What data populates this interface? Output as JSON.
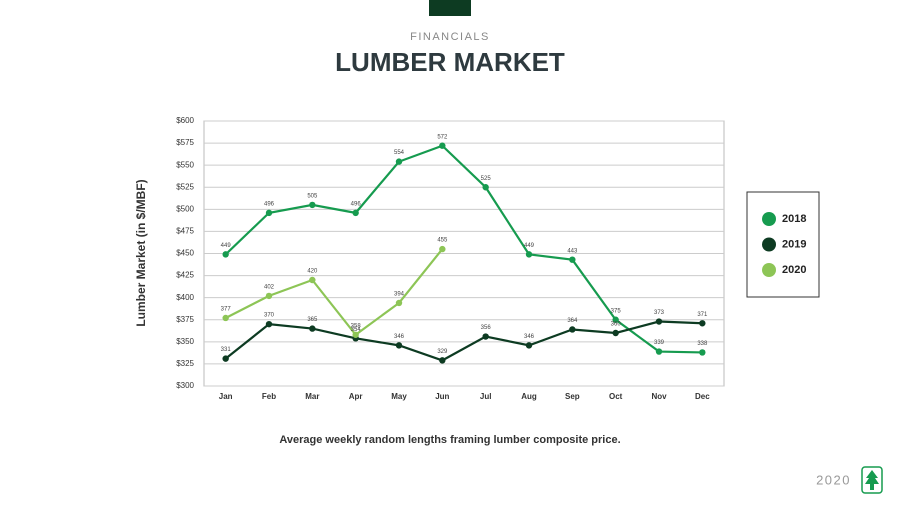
{
  "header": {
    "section": "FINANCIALS",
    "title": "LUMBER MARKET"
  },
  "chart_data": {
    "type": "line",
    "ylabel": "Lumber Market  (in $/MBF)",
    "caption": "Average weekly random lengths framing lumber composite price.",
    "categories": [
      "Jan",
      "Feb",
      "Mar",
      "Apr",
      "May",
      "Jun",
      "Jul",
      "Aug",
      "Sep",
      "Oct",
      "Nov",
      "Dec"
    ],
    "series": [
      {
        "name": "2018",
        "color": "#169b4f",
        "values": [
          449,
          496,
          505,
          496,
          554,
          572,
          525,
          449,
          443,
          375,
          339,
          338
        ]
      },
      {
        "name": "2019",
        "color": "#0d3b22",
        "values": [
          331,
          370,
          365,
          354,
          346,
          329,
          356,
          346,
          364,
          360,
          373,
          371
        ]
      },
      {
        "name": "2020",
        "color": "#8dc556",
        "values": [
          377,
          402,
          420,
          358,
          394,
          455,
          null,
          null,
          null,
          null,
          null,
          null
        ]
      }
    ],
    "ylim": [
      300,
      600
    ],
    "yticks": [
      {
        "value": 300,
        "label": "$300"
      },
      {
        "value": 325,
        "label": "$325"
      },
      {
        "value": 350,
        "label": "$350"
      },
      {
        "value": 375,
        "label": "$375"
      },
      {
        "value": 400,
        "label": "$400"
      },
      {
        "value": 425,
        "label": "$425"
      },
      {
        "value": 450,
        "label": "$450"
      },
      {
        "value": 475,
        "label": "$475"
      },
      {
        "value": 500,
        "label": "$500"
      },
      {
        "value": 525,
        "label": "$525"
      },
      {
        "value": 550,
        "label": "$550"
      },
      {
        "value": 575,
        "label": "$575"
      },
      {
        "value": 600,
        "label": "$600"
      }
    ],
    "grid": true,
    "legend": "right"
  },
  "footer": {
    "year": "2020"
  }
}
